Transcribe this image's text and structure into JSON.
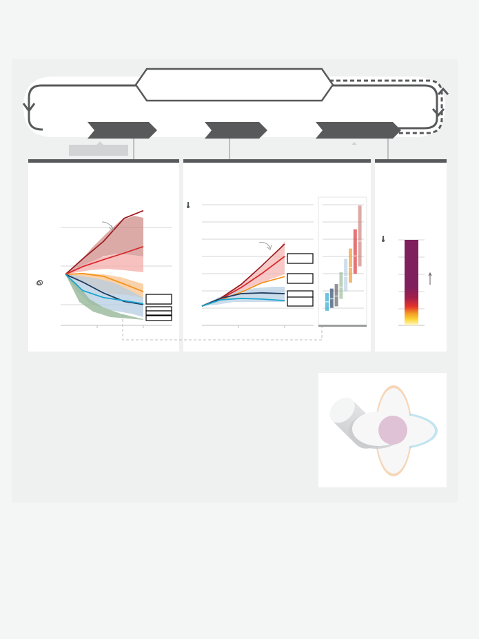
{
  "page": {
    "background": "#f4f5f5",
    "panel_background": "#eff0f0"
  },
  "top_box": {
    "text": ""
  },
  "chevrons": [
    {
      "label": ""
    },
    {
      "label": ""
    },
    {
      "label": ""
    }
  ],
  "colors": {
    "dark_gray": "#58595b",
    "dark_red": "#9c1d21",
    "red": "#d8282e",
    "orange": "#f4931f",
    "navy": "#1f3a5f",
    "cyan": "#18a4cf",
    "rose_band": "#c97d77",
    "pink_band": "#f4b2ae",
    "peach_band": "#f9c795",
    "blue_band": "#b5cde2",
    "green_band": "#97b898",
    "bar_purple": "#7f1f5d",
    "bar_red": "#e6332a",
    "bar_yellow": "#fcd535",
    "venn_pink": "#dfc2d5",
    "venn_orange": "#f2c59a",
    "venn_blue": "#a6d8ea",
    "venn_gray": "#c9cbcd"
  },
  "panels": [
    {
      "name": "left-panel",
      "icon": "co2-icon",
      "legend": [
        "",
        "",
        "",
        ""
      ],
      "chart_data": {
        "type": "line",
        "series": [
          {
            "color": "dark_red",
            "values": [
              0,
              0.4,
              0.85,
              1.45,
              1.65
            ]
          },
          {
            "color": "red",
            "values": [
              0,
              0.2,
              0.38,
              0.55,
              0.72
            ]
          },
          {
            "color": "orange",
            "values": [
              0,
              0.02,
              -0.05,
              -0.25,
              -0.45
            ]
          },
          {
            "color": "navy",
            "values": [
              0,
              -0.2,
              -0.48,
              -0.7,
              -0.78
            ]
          },
          {
            "color": "cyan",
            "values": [
              0,
              -0.42,
              -0.6,
              -0.68,
              -0.76
            ]
          }
        ]
      }
    },
    {
      "name": "middle-panel",
      "icon": "thermometer-icon",
      "legend": [
        "",
        "",
        "",
        ""
      ],
      "chart_data": {
        "type": "line",
        "series": [
          {
            "color": "dark_red",
            "values": [
              0,
              0.5,
              1.4,
              2.6,
              4.0
            ]
          },
          {
            "color": "red",
            "values": [
              0,
              0.45,
              1.2,
              2.1,
              3.2
            ]
          },
          {
            "color": "orange",
            "values": [
              0,
              0.4,
              0.9,
              1.5,
              1.9
            ]
          },
          {
            "color": "navy",
            "values": [
              0,
              0.5,
              0.8,
              0.85,
              0.8
            ]
          },
          {
            "color": "cyan",
            "values": [
              0,
              0.4,
              0.5,
              0.45,
              0.35
            ]
          }
        ],
        "ranges": [
          {
            "color": "cyan",
            "low": 0.1,
            "high": 1.3,
            "median": 0.7
          },
          {
            "color": "navy",
            "low": 0.3,
            "high": 1.6,
            "median": 0.9
          },
          {
            "color": "dark_gray",
            "low": 0.4,
            "high": 1.9,
            "median": 1.1
          },
          {
            "color": "green_band",
            "low": 0.9,
            "high": 2.7,
            "median": 1.7
          },
          {
            "color": "blue_band",
            "low": 1.4,
            "high": 3.6,
            "median": 2.4
          },
          {
            "color": "orange",
            "low": 2.0,
            "high": 4.3,
            "median": 3.0
          },
          {
            "color": "red",
            "low": 2.6,
            "high": 5.6,
            "median": 3.8
          },
          {
            "color": "rose_band",
            "low": 3.1,
            "high": 7.2,
            "median": 4.8
          }
        ]
      }
    },
    {
      "name": "right-panel",
      "icon": "thermometer-icon",
      "chart_data": {
        "type": "bar",
        "values": [
          5
        ]
      }
    }
  ]
}
